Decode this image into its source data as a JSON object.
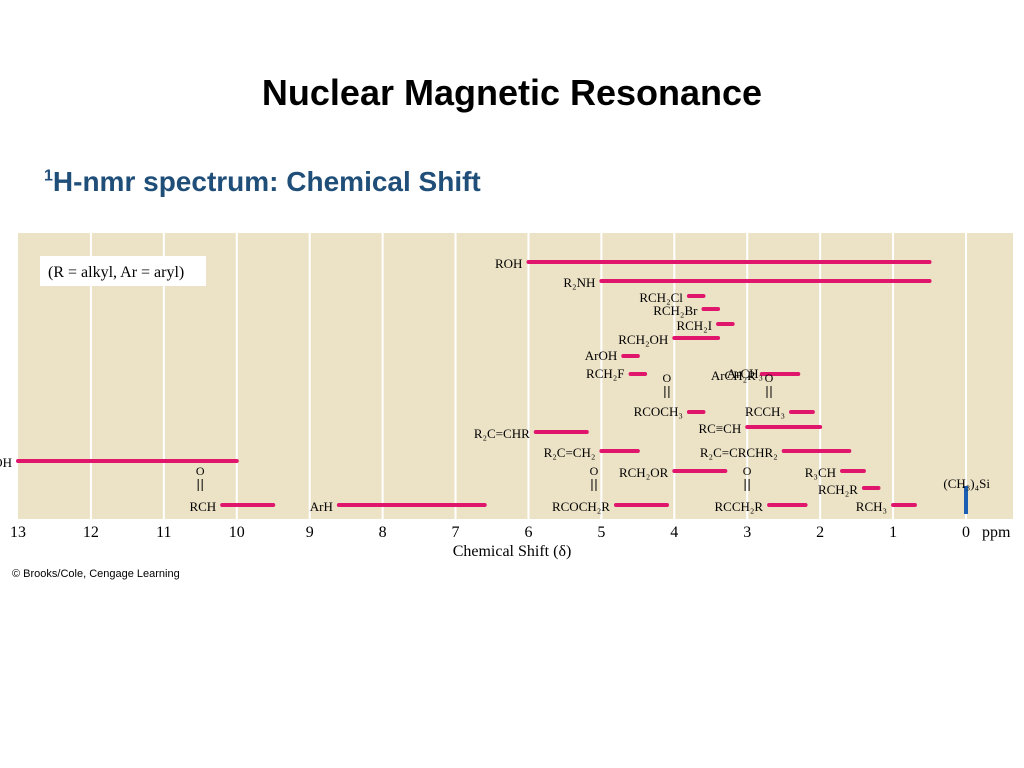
{
  "slide": {
    "title": "Nuclear Magnetic Resonance",
    "subtitle_sup": "1",
    "subtitle": "H-nmr spectrum: Chemical Shift",
    "credit": "© Brooks/Cole, Cengage Learning"
  },
  "colors": {
    "background": "#ece2c6",
    "grid": "#ffffff",
    "bar": "#e0166c",
    "tms": "#1a5fb4",
    "title": "#000000",
    "subtitle": "#1f4e79"
  },
  "chart_data": {
    "type": "range",
    "title": "",
    "xlabel": "Chemical Shift (δ)",
    "xunit": "ppm",
    "xlim": [
      13,
      0
    ],
    "x_reversed": true,
    "xticks": [
      13,
      12,
      11,
      10,
      9,
      8,
      7,
      6,
      5,
      4,
      3,
      2,
      1,
      0
    ],
    "grid": true,
    "legend_note": "(R = alkyl, Ar = aryl)",
    "ranges": [
      {
        "label": "ROH",
        "from": 6.0,
        "to": 0.5
      },
      {
        "label": "R₂NH",
        "from": 5.0,
        "to": 0.5
      },
      {
        "label": "RCH₂Cl",
        "from": 3.8,
        "to": 3.6
      },
      {
        "label": "RCH₂Br",
        "from": 3.6,
        "to": 3.4
      },
      {
        "label": "RCH₂I",
        "from": 3.4,
        "to": 3.2
      },
      {
        "label": "RCH₂OH",
        "from": 4.0,
        "to": 3.4
      },
      {
        "label": "ArOH",
        "from": 4.7,
        "to": 4.5
      },
      {
        "label": "RCH₂F",
        "from": 4.6,
        "to": 4.4
      },
      {
        "label": "ArCH₂R",
        "from": 2.8,
        "to": 2.4
      },
      {
        "label": "ArCH₃",
        "from": 2.7,
        "to": 2.3
      },
      {
        "label": "RCOCH₃",
        "from": 3.8,
        "to": 3.6,
        "carbonyl": true
      },
      {
        "label": "RCCH₃",
        "from": 2.4,
        "to": 2.1,
        "carbonyl": true
      },
      {
        "label": "RC≡CH",
        "from": 3.0,
        "to": 2.0
      },
      {
        "label": "R₂C=CHR",
        "from": 5.9,
        "to": 5.2
      },
      {
        "label": "RCOH",
        "from": 13.0,
        "to": 10.0,
        "carbonyl": true
      },
      {
        "label": "R₂C=CH₂",
        "from": 5.0,
        "to": 4.5
      },
      {
        "label": "R₂C=CRCHR₂",
        "from": 2.5,
        "to": 1.6
      },
      {
        "label": "RCH₂OR",
        "from": 4.0,
        "to": 3.3
      },
      {
        "label": "R₃CH",
        "from": 1.7,
        "to": 1.4
      },
      {
        "label": "RCH₂R",
        "from": 1.4,
        "to": 1.2
      },
      {
        "label": "(CH₃)₄Si",
        "from": 0.0,
        "to": 0.0,
        "tms": true
      },
      {
        "label": "RCH",
        "from": 10.2,
        "to": 9.5,
        "carbonyl": true
      },
      {
        "label": "ArH",
        "from": 8.6,
        "to": 6.6
      },
      {
        "label": "RCOCH₂R",
        "from": 4.8,
        "to": 4.1,
        "carbonyl": true
      },
      {
        "label": "RCCH₂R",
        "from": 2.7,
        "to": 2.2,
        "carbonyl": true
      },
      {
        "label": "RCH₃",
        "from": 1.0,
        "to": 0.7
      }
    ]
  }
}
